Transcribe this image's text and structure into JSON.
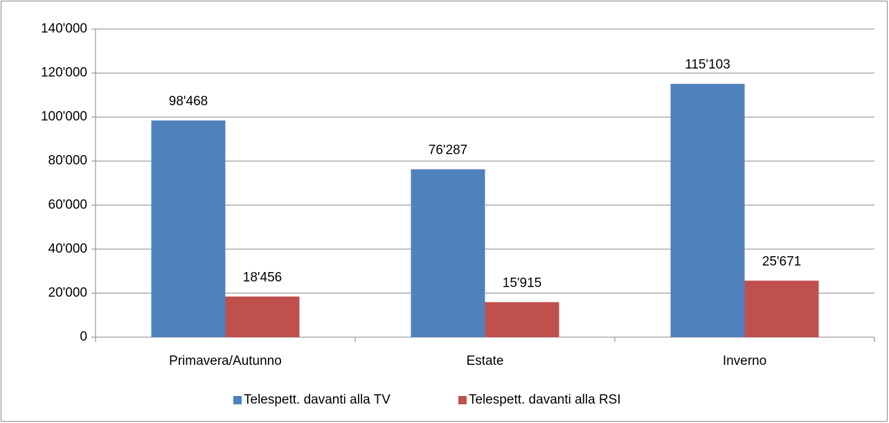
{
  "chart_data": {
    "type": "bar",
    "categories": [
      "Primavera/Autunno",
      "Estate",
      "Inverno"
    ],
    "series": [
      {
        "name": "Telespett. davanti alla TV",
        "color": "#4f81bd",
        "values": [
          98468,
          76287,
          115103
        ],
        "value_labels": [
          "98'468",
          "76'287",
          "115'103"
        ]
      },
      {
        "name": "Telespett. davanti alla RSI",
        "color": "#c0504d",
        "values": [
          18456,
          15915,
          25671
        ],
        "value_labels": [
          "18'456",
          "15'915",
          "25'671"
        ]
      }
    ],
    "ylim": [
      0,
      140000
    ],
    "yticks": [
      0,
      {
        "value": 20000,
        "label": "20'000"
      },
      {
        "value": 40000,
        "label": "40'000"
      },
      {
        "value": 60000,
        "label": "60'000"
      },
      {
        "value": 80000,
        "label": "80'000"
      },
      {
        "value": 100000,
        "label": "100'000"
      },
      {
        "value": 120000,
        "label": "120'000"
      },
      {
        "value": 140000,
        "label": "140'000"
      }
    ],
    "grid": true,
    "legend": "bottom"
  }
}
